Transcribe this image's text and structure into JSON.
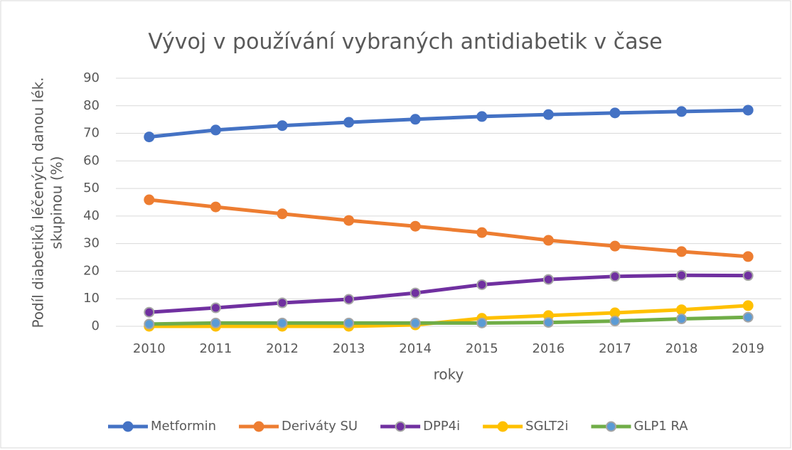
{
  "chart_data": {
    "type": "line",
    "title": "Vývoj v používání vybraných antidiabetik v čase",
    "xlabel": "roky",
    "ylabel": [
      "Podíl diabetiků  léčených danou lék.",
      "skupinou (%)"
    ],
    "categories": [
      "2010",
      "2011",
      "2012",
      "2013",
      "2014",
      "2015",
      "2016",
      "2017",
      "2018",
      "2019"
    ],
    "series": [
      {
        "name": "Metformin",
        "color": "#4472c4",
        "marker_color": "#4472c4",
        "marker_edge": "#4472c4",
        "values": [
          68.7,
          71.2,
          72.8,
          74.0,
          75.1,
          76.1,
          76.8,
          77.4,
          77.9,
          78.4
        ]
      },
      {
        "name": "Deriváty SU",
        "color": "#ed7d31",
        "marker_color": "#ed7d31",
        "marker_edge": "#ed7d31",
        "values": [
          45.9,
          43.3,
          40.8,
          38.4,
          36.3,
          34.0,
          31.2,
          29.1,
          27.1,
          25.3
        ]
      },
      {
        "name": "DPP4i",
        "color": "#7030a0",
        "marker_color": "#7030a0",
        "marker_edge": "#a5a5a5",
        "values": [
          5.1,
          6.7,
          8.5,
          9.8,
          12.1,
          15.1,
          17.0,
          18.1,
          18.5,
          18.4
        ]
      },
      {
        "name": "SGLT2i",
        "color": "#ffc000",
        "marker_color": "#ffc000",
        "marker_edge": "#ffc000",
        "values": [
          0.0,
          0.0,
          0.0,
          0.0,
          0.5,
          2.9,
          3.9,
          4.9,
          6.0,
          7.5
        ]
      },
      {
        "name": "GLP1 RA",
        "color": "#70ad47",
        "marker_color": "#5b9bd5",
        "marker_edge": "#a5a5a5",
        "values": [
          0.8,
          1.2,
          1.2,
          1.2,
          1.2,
          1.2,
          1.4,
          1.9,
          2.7,
          3.3
        ]
      }
    ],
    "ylim": [
      0,
      90
    ],
    "yticks": [
      0,
      10,
      20,
      30,
      40,
      50,
      60,
      70,
      80,
      90
    ],
    "grid": true,
    "legend": "bottom"
  }
}
